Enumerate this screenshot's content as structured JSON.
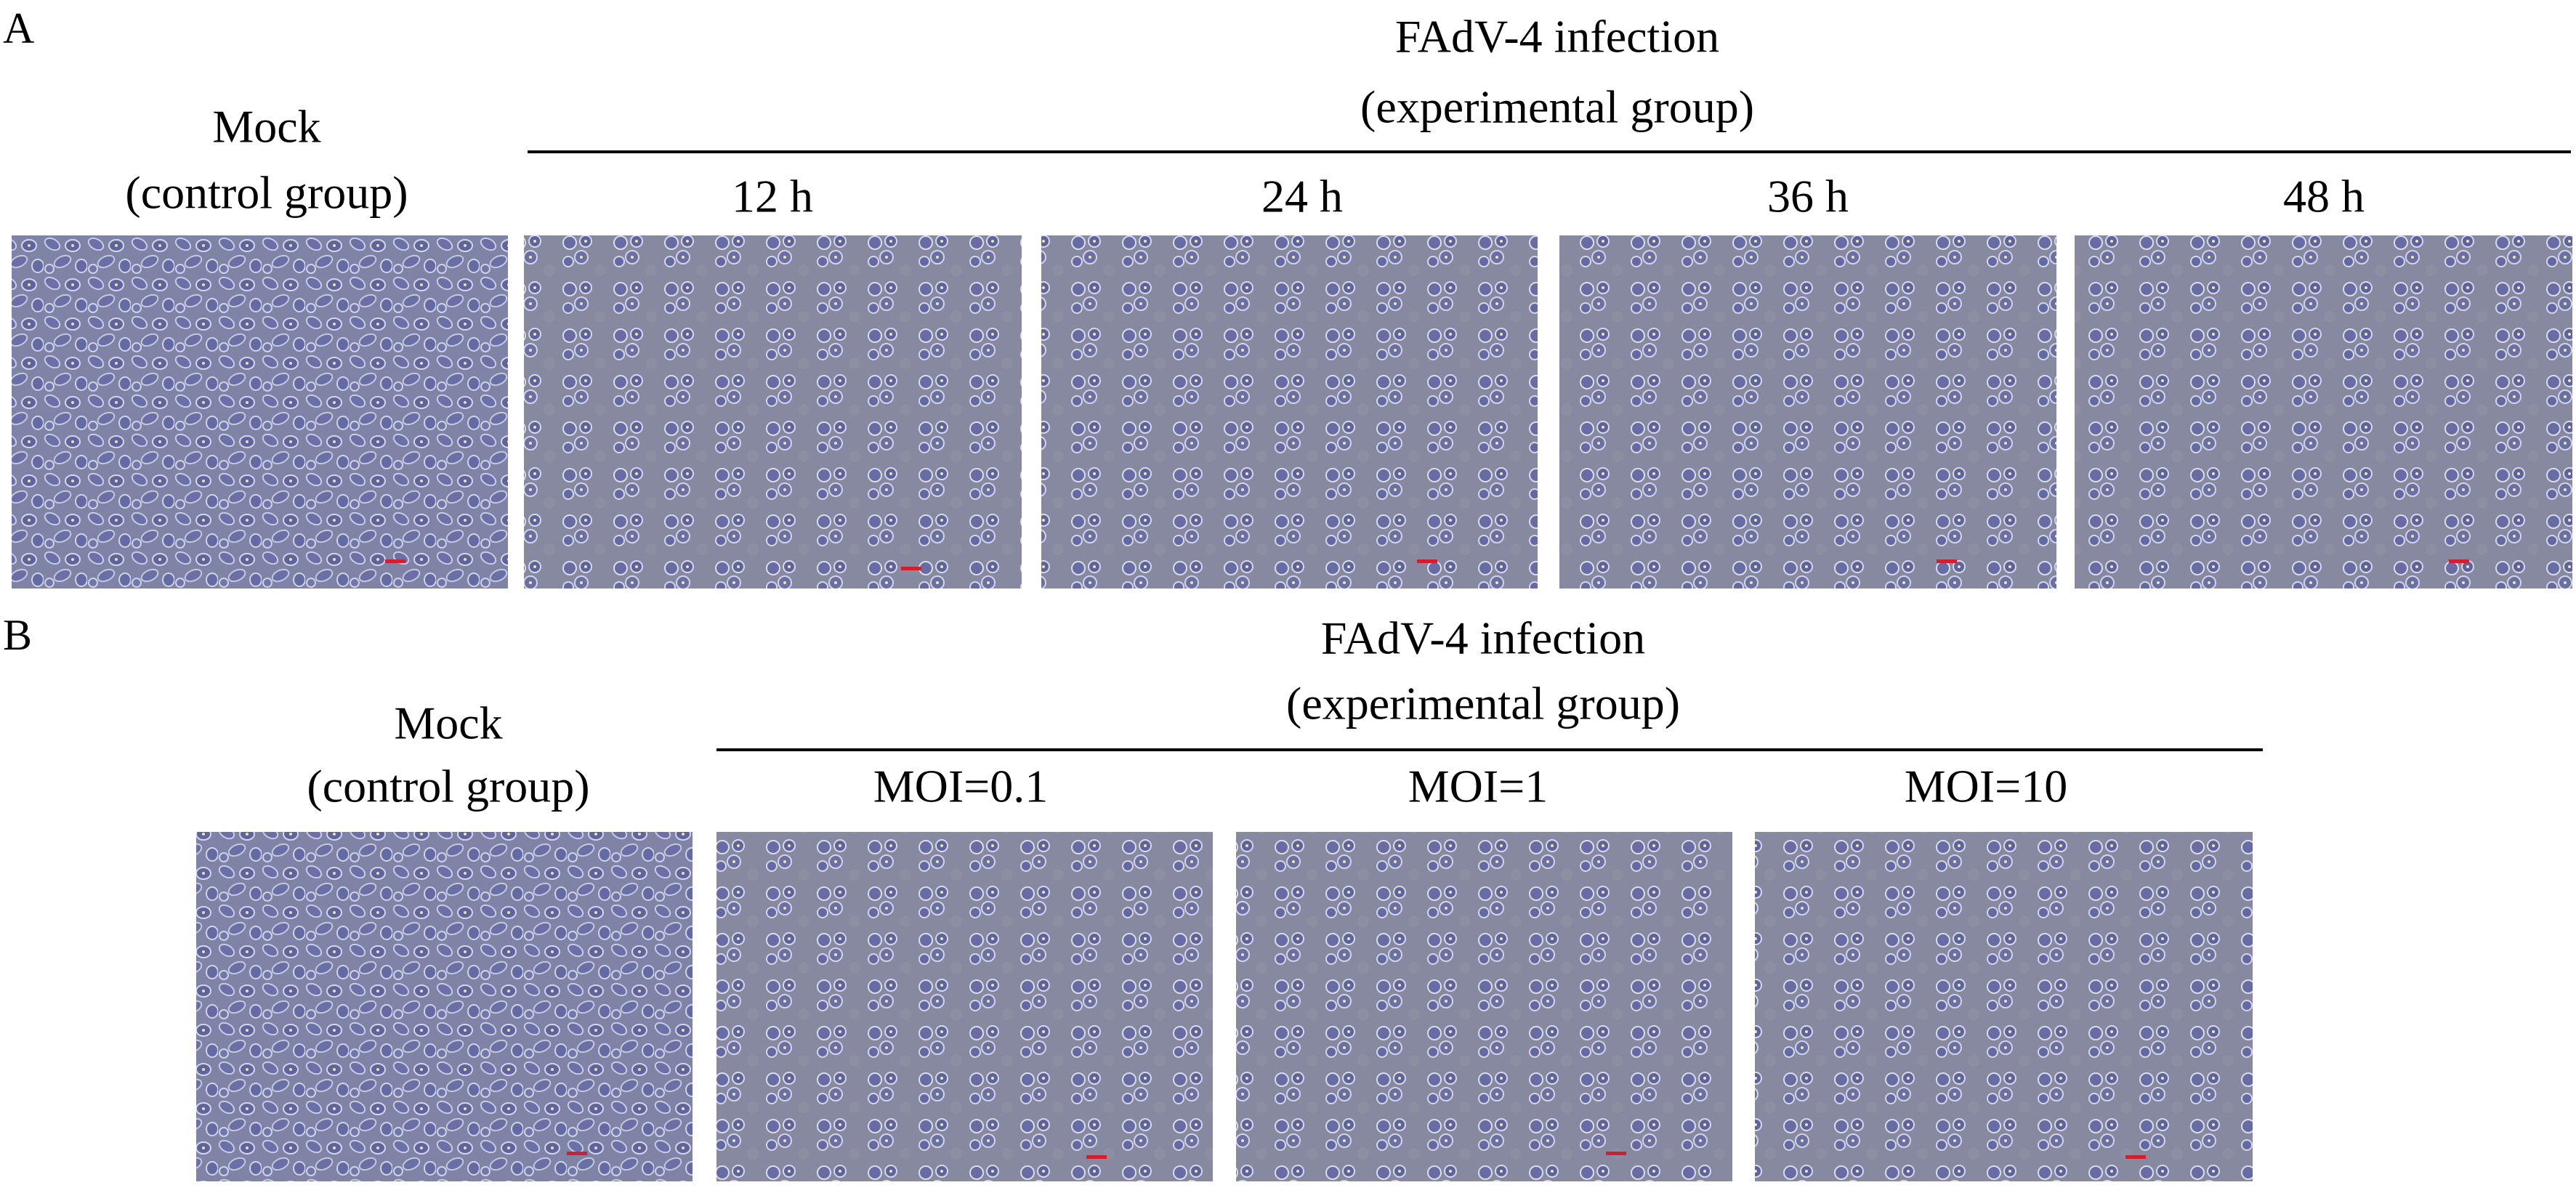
{
  "panels": [
    {
      "label": "A",
      "title": "FAdV-4 infection",
      "subtitle": "(experimental group)",
      "control": {
        "title": "Mock",
        "subtitle": "(control group)"
      },
      "conditions": [
        "12 h",
        "24 h",
        "36 h",
        "48 h"
      ]
    },
    {
      "label": "B",
      "title": "FAdV-4 infection",
      "subtitle": "(experimental group)",
      "control": {
        "title": "Mock",
        "subtitle": "(control group)"
      },
      "conditions": [
        "MOI=0.1",
        "MOI=1",
        "MOI=10"
      ]
    }
  ]
}
